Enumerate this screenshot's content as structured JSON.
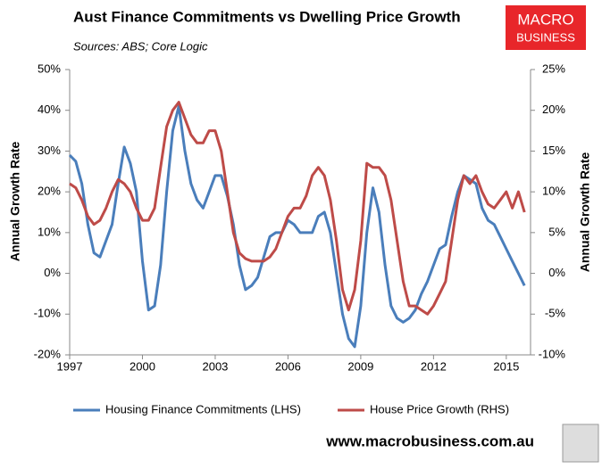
{
  "chart_data": {
    "type": "line",
    "title": "Aust Finance Commitments vs Dwelling Price Growth",
    "subtitle": "Sources: ABS; Core Logic",
    "ylabel": "Annual Growth Rate",
    "y2label": "Annual Growth Rate",
    "brand": [
      "MACRO",
      "BUSINESS"
    ],
    "website": "www.macrobusiness.com.au",
    "legend": "bottom",
    "grid": false,
    "x": [
      1997,
      1997.25,
      1997.5,
      1997.75,
      1998,
      1998.25,
      1998.5,
      1998.75,
      1999,
      1999.25,
      1999.5,
      1999.75,
      2000,
      2000.25,
      2000.5,
      2000.75,
      2001,
      2001.25,
      2001.5,
      2001.75,
      2002,
      2002.25,
      2002.5,
      2002.75,
      2003,
      2003.25,
      2003.5,
      2003.75,
      2004,
      2004.25,
      2004.5,
      2004.75,
      2005,
      2005.25,
      2005.5,
      2005.75,
      2006,
      2006.25,
      2006.5,
      2006.75,
      2007,
      2007.25,
      2007.5,
      2007.75,
      2008,
      2008.25,
      2008.5,
      2008.75,
      2009,
      2009.25,
      2009.5,
      2009.75,
      2010,
      2010.25,
      2010.5,
      2010.75,
      2011,
      2011.25,
      2011.5,
      2011.75,
      2012,
      2012.25,
      2012.5,
      2012.75,
      2013,
      2013.25,
      2013.5,
      2013.75,
      2014,
      2014.25,
      2014.5,
      2014.75,
      2015,
      2015.25,
      2015.5,
      2015.75
    ],
    "xlim": [
      1997,
      2016
    ],
    "xticks": [
      1997,
      2000,
      2003,
      2006,
      2009,
      2012,
      2015
    ],
    "ylim": [
      -20,
      50
    ],
    "yticks": [
      {
        "value": -20,
        "label": "-20%"
      },
      {
        "value": -10,
        "label": "-10%"
      },
      {
        "value": 0,
        "label": "0%"
      },
      {
        "value": 10,
        "label": "10%"
      },
      {
        "value": 20,
        "label": "20%"
      },
      {
        "value": 30,
        "label": "30%"
      },
      {
        "value": 40,
        "label": "40%"
      },
      {
        "value": 50,
        "label": "50%"
      }
    ],
    "y2lim": [
      -10,
      25
    ],
    "y2ticks": [
      {
        "value": -10,
        "label": "-10%"
      },
      {
        "value": -5,
        "label": "-5%"
      },
      {
        "value": 0,
        "label": "0%"
      },
      {
        "value": 5,
        "label": "5%"
      },
      {
        "value": 10,
        "label": "10%"
      },
      {
        "value": 15,
        "label": "15%"
      },
      {
        "value": 20,
        "label": "20%"
      },
      {
        "value": 25,
        "label": "25%"
      }
    ],
    "series": [
      {
        "name": "Housing Finance Commitments (LHS)",
        "color": "#4a7ebb",
        "axis": "y",
        "values": [
          29,
          27.5,
          22,
          12,
          5,
          4,
          8,
          12,
          22,
          31,
          27,
          20,
          3,
          -9,
          -8,
          2,
          20,
          35,
          41,
          30,
          22,
          18,
          16,
          20,
          24,
          24,
          19,
          12,
          2,
          -4,
          -3,
          -1,
          4,
          9,
          10,
          10,
          13,
          12,
          10,
          10,
          10,
          14,
          15,
          10,
          0,
          -10,
          -16,
          -18,
          -8,
          10,
          21,
          15,
          2,
          -8,
          -11,
          -12,
          -11,
          -9,
          -5,
          -2,
          2,
          6,
          7,
          14,
          20,
          24,
          23,
          22,
          16,
          13,
          12,
          9,
          6,
          3,
          0,
          -3
        ]
      },
      {
        "name": "House Price Growth (RHS)",
        "color": "#be4b48",
        "axis": "y2",
        "values": [
          11,
          10.5,
          9,
          7,
          6,
          6.5,
          8,
          10,
          11.5,
          11,
          10,
          8,
          6.5,
          6.5,
          8,
          13,
          18,
          20,
          21,
          19,
          17,
          16,
          16,
          17.5,
          17.5,
          15,
          10,
          5,
          2.5,
          1.8,
          1.5,
          1.5,
          1.5,
          2,
          3,
          5,
          7,
          8,
          8,
          9.5,
          12,
          13,
          12,
          9,
          4,
          -2,
          -4.5,
          -2,
          4,
          13.5,
          13,
          13,
          12,
          9,
          4,
          -1,
          -4,
          -4,
          -4.5,
          -5,
          -4,
          -2.5,
          -1,
          4,
          9,
          12,
          11,
          12,
          10,
          8.5,
          8,
          9,
          10,
          8,
          10,
          7.5
        ]
      }
    ]
  }
}
